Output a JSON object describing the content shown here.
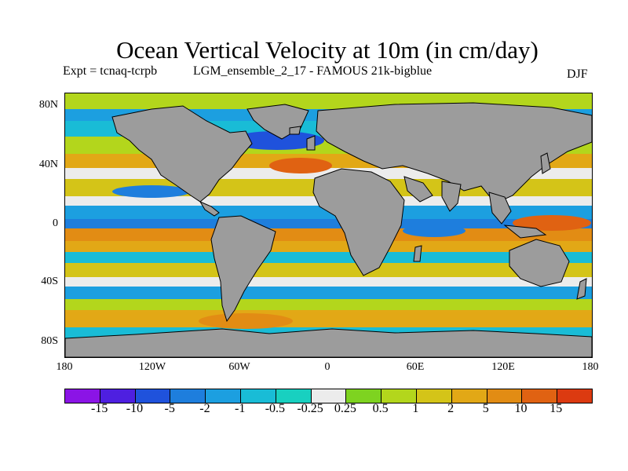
{
  "title": "Ocean Vertical Velocity at 10m (in cm/day)",
  "expt": "Expt = tcnaq-tcrpb",
  "run": "LGM_ensemble_2_17 - FAMOUS 21k-bigblue",
  "season": "DJF",
  "lat_labels": [
    "80N",
    "40N",
    "0",
    "40S",
    "80S"
  ],
  "lon_labels": [
    "180",
    "120W",
    "60W",
    "0",
    "60E",
    "120E",
    "180"
  ],
  "colorbar": {
    "colors": [
      "#8b14e6",
      "#4e1fe0",
      "#1f52dc",
      "#1e7edd",
      "#1c9fe0",
      "#19bcd6",
      "#18d0c0",
      "#ececec",
      "#7ed320",
      "#b3d61c",
      "#d4c418",
      "#e2a816",
      "#e28c14",
      "#e06212",
      "#dc3a10"
    ],
    "labels": [
      "-15",
      "-10",
      "-5",
      "-2",
      "-1",
      "-0.5",
      "-0.25",
      "0.25",
      "0.5",
      "1",
      "2",
      "5",
      "10",
      "15"
    ]
  },
  "colors": {
    "land": "#9c9c9c",
    "coast": "#000000"
  }
}
